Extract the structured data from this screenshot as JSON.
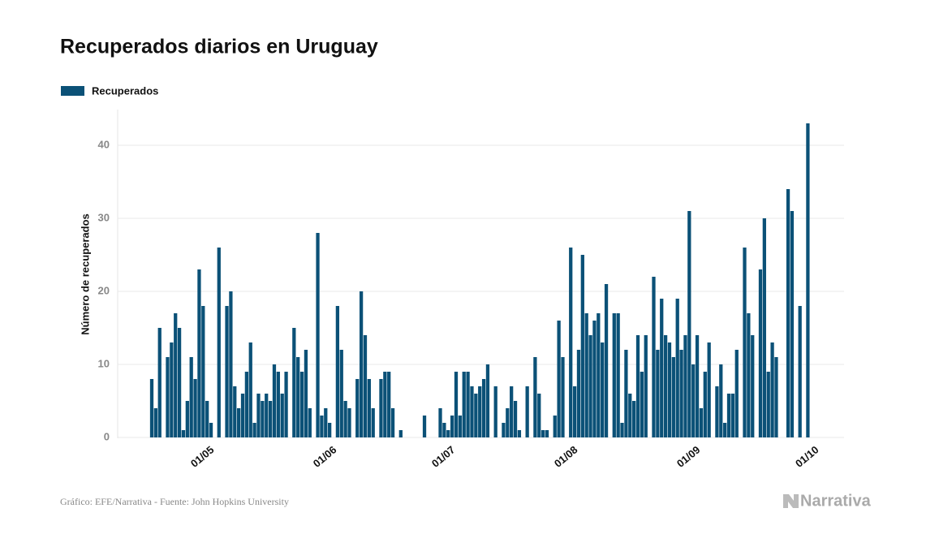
{
  "chart_data": {
    "type": "bar",
    "title": "Recuperados diarios en Uruguay",
    "y_label": "Número de recuperados",
    "source": "Gráfico: EFE/Narrativa - Fuente: John Hopkins University",
    "brand": "Narrativa",
    "categories": [
      null,
      null,
      null,
      null,
      null,
      null,
      null,
      null,
      null,
      null,
      null,
      null,
      null,
      "01/05",
      null,
      null,
      null,
      null,
      null,
      null,
      null,
      null,
      null,
      null,
      null,
      null,
      null,
      null,
      null,
      null,
      null,
      null,
      null,
      null,
      null,
      null,
      null,
      null,
      null,
      null,
      null,
      null,
      null,
      null,
      "01/06",
      null,
      null,
      null,
      null,
      null,
      null,
      null,
      null,
      null,
      null,
      null,
      null,
      null,
      null,
      null,
      null,
      null,
      null,
      null,
      null,
      null,
      null,
      null,
      null,
      null,
      null,
      null,
      null,
      null,
      "01/07",
      null,
      null,
      null,
      null,
      null,
      null,
      null,
      null,
      null,
      null,
      null,
      null,
      null,
      null,
      null,
      null,
      null,
      null,
      null,
      null,
      null,
      null,
      null,
      null,
      null,
      null,
      null,
      null,
      null,
      null,
      "01/08",
      null,
      null,
      null,
      null,
      null,
      null,
      null,
      null,
      null,
      null,
      null,
      null,
      null,
      null,
      null,
      null,
      null,
      null,
      null,
      null,
      null,
      null,
      null,
      null,
      null,
      null,
      null,
      null,
      null,
      null,
      "01/09",
      null,
      null,
      null,
      null,
      null,
      null,
      null,
      null,
      null,
      null,
      null,
      null,
      null,
      null,
      null,
      null,
      null,
      null,
      null,
      null,
      null,
      null,
      null,
      null,
      null,
      null,
      null,
      null,
      null,
      "01/10"
    ],
    "series": [
      {
        "name": "Recuperados",
        "color": "#0b5177",
        "values": [
          8,
          4,
          15,
          0,
          11,
          13,
          17,
          15,
          1,
          5,
          11,
          8,
          23,
          18,
          5,
          2,
          0,
          26,
          0,
          18,
          20,
          7,
          4,
          6,
          9,
          13,
          2,
          6,
          5,
          6,
          5,
          10,
          9,
          6,
          9,
          0,
          15,
          11,
          9,
          12,
          4,
          0,
          28,
          3,
          4,
          2,
          0,
          18,
          12,
          5,
          4,
          0,
          8,
          20,
          14,
          8,
          4,
          0,
          8,
          9,
          9,
          4,
          0,
          1,
          0,
          0,
          0,
          0,
          0,
          3,
          0,
          0,
          0,
          4,
          2,
          1,
          3,
          9,
          3,
          9,
          9,
          7,
          6,
          7,
          8,
          10,
          0,
          7,
          0,
          2,
          4,
          7,
          5,
          1,
          0,
          7,
          0,
          11,
          6,
          1,
          1,
          0,
          3,
          16,
          11,
          0,
          26,
          7,
          12,
          25,
          17,
          14,
          16,
          17,
          13,
          21,
          0,
          17,
          17,
          2,
          12,
          6,
          5,
          14,
          9,
          14,
          0,
          22,
          12,
          19,
          14,
          13,
          11,
          19,
          12,
          14,
          31,
          10,
          14,
          4,
          9,
          13,
          0,
          7,
          10,
          2,
          6,
          6,
          12,
          0,
          26,
          17,
          14,
          0,
          23,
          30,
          9,
          13,
          11,
          0,
          0,
          34,
          31,
          0,
          18,
          0,
          43
        ]
      }
    ],
    "ylim": [
      0,
      45
    ],
    "yticks": [
      0,
      10,
      20,
      30,
      40
    ],
    "grid": true,
    "legend": "top-left"
  }
}
